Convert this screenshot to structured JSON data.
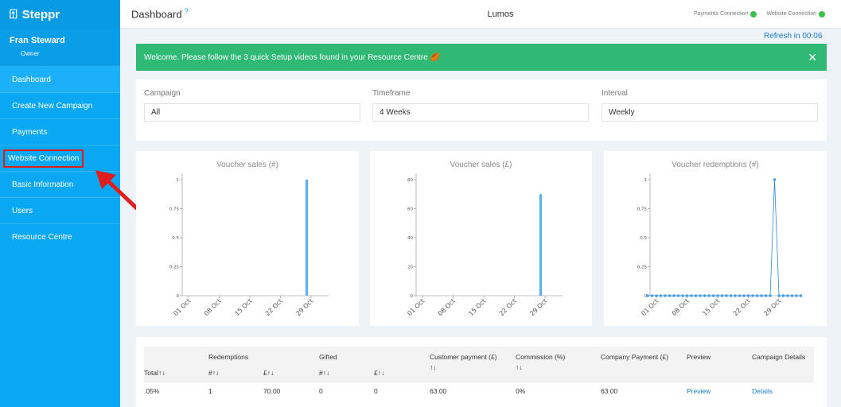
{
  "sidebar": {
    "brand": "Steppr",
    "user_name": "Fran Steward",
    "user_role": "Owner",
    "items": [
      {
        "label": "Dashboard"
      },
      {
        "label": "Create New Campaign"
      },
      {
        "label": "Payments"
      },
      {
        "label": "Website Connection"
      },
      {
        "label": "Basic Information"
      },
      {
        "label": "Users"
      },
      {
        "label": "Resource Centre"
      }
    ]
  },
  "header": {
    "title": "Dashboard",
    "help": "?",
    "org": "Lumos",
    "payments_connection": "Payments Connection",
    "website_connection": "Website Connection",
    "status_color": "#3cbf4b"
  },
  "refresh": "Refresh in 00:06",
  "banner": {
    "text": "Welcome. Please follow the 3 quick Setup videos found in your Resource Centre 🏉",
    "close": "✕",
    "color": "#2fb975"
  },
  "filters": [
    {
      "label": "Campaign",
      "value": "All"
    },
    {
      "label": "Timeframe",
      "value": "4 Weeks"
    },
    {
      "label": "Interval",
      "value": "Weekly"
    }
  ],
  "chart_data": [
    {
      "type": "bar",
      "title": "Voucher sales (#)",
      "x_ticks": [
        "01 Oct",
        "08 Oct",
        "15 Oct",
        "22 Oct",
        "29 Oct"
      ],
      "y_ticks": [
        "0",
        "0.25",
        "0.5",
        "0.75",
        "1"
      ],
      "ylim": [
        0,
        1
      ],
      "points": [
        {
          "x": "Oct 28",
          "y": 1
        }
      ],
      "color": "#5aaff5"
    },
    {
      "type": "bar",
      "title": "Voucher sales (£)",
      "x_ticks": [
        "01 Oct",
        "08 Oct",
        "15 Oct",
        "22 Oct",
        "29 Oct"
      ],
      "y_ticks": [
        "0",
        "20",
        "40",
        "60",
        "80"
      ],
      "ylim": [
        0,
        80
      ],
      "points": [
        {
          "x": "Oct 28",
          "y": 70
        }
      ],
      "color": "#5aaff5"
    },
    {
      "type": "line",
      "title": "Voucher redemptions (#)",
      "x_ticks": [
        "01 Oct",
        "08 Oct",
        "15 Oct",
        "22 Oct",
        "29 Oct"
      ],
      "y_ticks": [
        "0",
        "0.25",
        "0.5",
        "0.75",
        "1"
      ],
      "ylim": [
        0,
        1
      ],
      "peak": {
        "x": "Oct 28",
        "y": 1
      },
      "color": "#2c87d6"
    }
  ],
  "table": {
    "group_redemptions": "Redemptions",
    "group_gifted": "Gifted",
    "col_total": "Total↑↓",
    "col_red_count": "#↑↓",
    "col_red_amount": "£↑↓",
    "col_gift_count": "#↑↓",
    "col_gift_amount": "£↑↓",
    "col_customer_payment": "Customer payment (£)",
    "col_customer_sort": "↑↓",
    "col_commission": "Commission (%)",
    "col_commission_sort": "↑↓",
    "col_company_payment": "Company Payment (£)",
    "col_preview": "Preview",
    "col_details": "Campaign Details",
    "row": {
      "total": ".05%",
      "red_count": "1",
      "red_amount": "70.00",
      "gift_count": "0",
      "gift_amount": "0",
      "customer_payment": "63.00",
      "commission": "0%",
      "company_payment": "63.00",
      "preview": "Preview",
      "details": "Details"
    }
  }
}
